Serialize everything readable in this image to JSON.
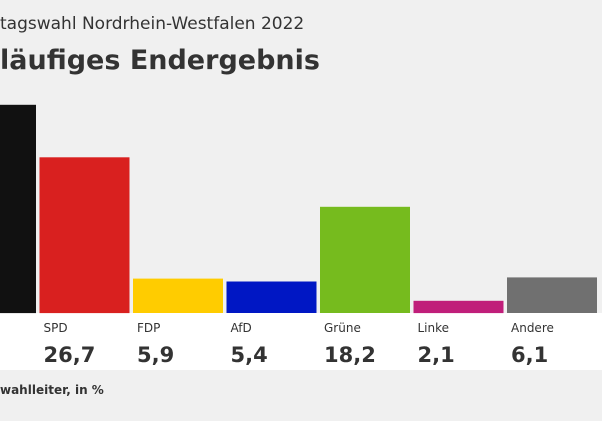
{
  "header": {
    "subtitle": "tagswahl Nordrhein-Westfalen 2022",
    "title": "läufiges Endergebnis"
  },
  "source_note": "wahlleiter, in %",
  "chart_data": {
    "type": "bar",
    "categories": [
      "",
      "SPD",
      "FDP",
      "AfD",
      "Grüne",
      "Linke",
      "Andere"
    ],
    "values": [
      35.7,
      26.7,
      5.9,
      5.4,
      18.2,
      2.1,
      6.1
    ],
    "value_labels": [
      "",
      "26,7",
      "5,9",
      "5,4",
      "18,2",
      "2,1",
      "6,1"
    ],
    "colors": [
      "#111111",
      "#d9201f",
      "#ffcc00",
      "#0017c4",
      "#76bb1e",
      "#c01e7a",
      "#707070"
    ],
    "title": "läufiges Endergebnis",
    "xlabel": "",
    "ylabel": "",
    "ylim": [
      0,
      36
    ],
    "grid": false,
    "legend": "none"
  }
}
